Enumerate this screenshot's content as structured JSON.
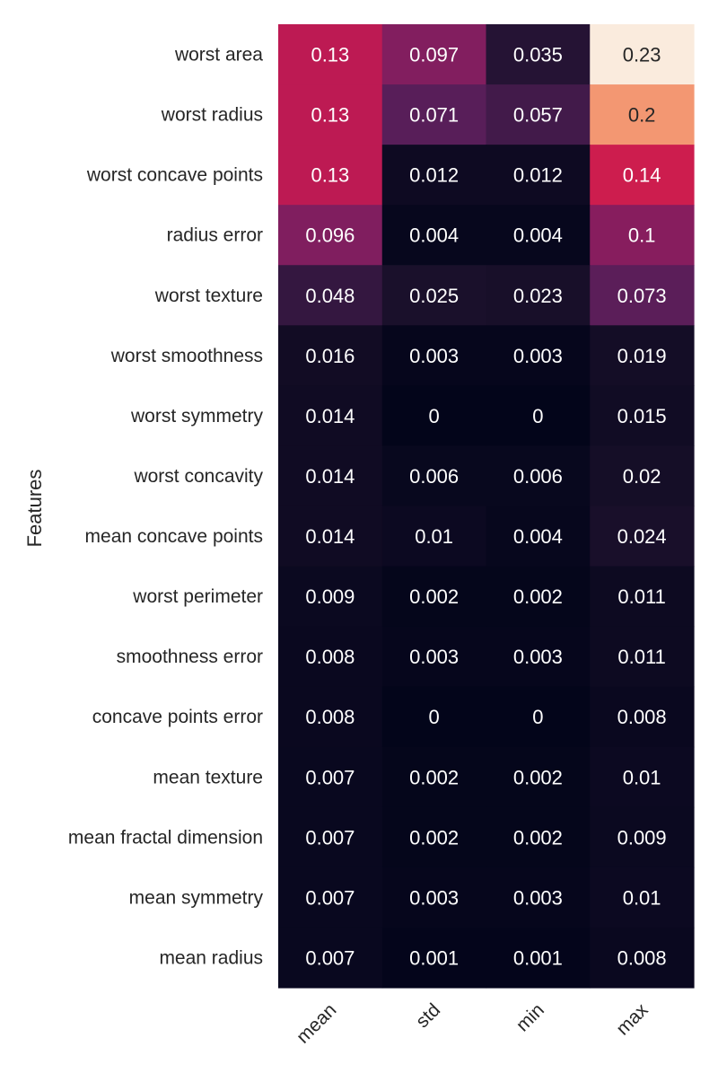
{
  "chart_data": {
    "type": "heatmap",
    "ylabel": "Features",
    "xlabel": "",
    "columns": [
      "mean",
      "std",
      "min",
      "max"
    ],
    "rows": [
      "worst area",
      "worst radius",
      "worst concave points",
      "radius error",
      "worst texture",
      "worst smoothness",
      "worst symmetry",
      "worst concavity",
      "mean concave points",
      "worst perimeter",
      "smoothness error",
      "concave points error",
      "mean texture",
      "mean fractal dimension",
      "mean symmetry",
      "mean radius"
    ],
    "values": [
      [
        0.13,
        0.097,
        0.035,
        0.23
      ],
      [
        0.13,
        0.071,
        0.057,
        0.2
      ],
      [
        0.13,
        0.012,
        0.012,
        0.14
      ],
      [
        0.096,
        0.004,
        0.004,
        0.1
      ],
      [
        0.048,
        0.025,
        0.023,
        0.073
      ],
      [
        0.016,
        0.003,
        0.003,
        0.019
      ],
      [
        0.014,
        0,
        0,
        0.015
      ],
      [
        0.014,
        0.006,
        0.006,
        0.02
      ],
      [
        0.014,
        0.01,
        0.004,
        0.024
      ],
      [
        0.009,
        0.002,
        0.002,
        0.011
      ],
      [
        0.008,
        0.003,
        0.003,
        0.011
      ],
      [
        0.008,
        0,
        0,
        0.008
      ],
      [
        0.007,
        0.002,
        0.002,
        0.01
      ],
      [
        0.007,
        0.002,
        0.002,
        0.009
      ],
      [
        0.007,
        0.003,
        0.003,
        0.01
      ],
      [
        0.007,
        0.001,
        0.001,
        0.008
      ]
    ],
    "labels": [
      [
        "0.13",
        "0.097",
        "0.035",
        "0.23"
      ],
      [
        "0.13",
        "0.071",
        "0.057",
        "0.2"
      ],
      [
        "0.13",
        "0.012",
        "0.012",
        "0.14"
      ],
      [
        "0.096",
        "0.004",
        "0.004",
        "0.1"
      ],
      [
        "0.048",
        "0.025",
        "0.023",
        "0.073"
      ],
      [
        "0.016",
        "0.003",
        "0.003",
        "0.019"
      ],
      [
        "0.014",
        "0",
        "0",
        "0.015"
      ],
      [
        "0.014",
        "0.006",
        "0.006",
        "0.02"
      ],
      [
        "0.014",
        "0.01",
        "0.004",
        "0.024"
      ],
      [
        "0.009",
        "0.002",
        "0.002",
        "0.011"
      ],
      [
        "0.008",
        "0.003",
        "0.003",
        "0.011"
      ],
      [
        "0.008",
        "0",
        "0",
        "0.008"
      ],
      [
        "0.007",
        "0.002",
        "0.002",
        "0.01"
      ],
      [
        "0.007",
        "0.002",
        "0.002",
        "0.009"
      ],
      [
        "0.007",
        "0.003",
        "0.003",
        "0.01"
      ],
      [
        "0.007",
        "0.001",
        "0.001",
        "0.008"
      ]
    ],
    "colormap": "rocket",
    "vmin": 0,
    "vmax": 0.23,
    "colorbar": false,
    "grid": false
  }
}
